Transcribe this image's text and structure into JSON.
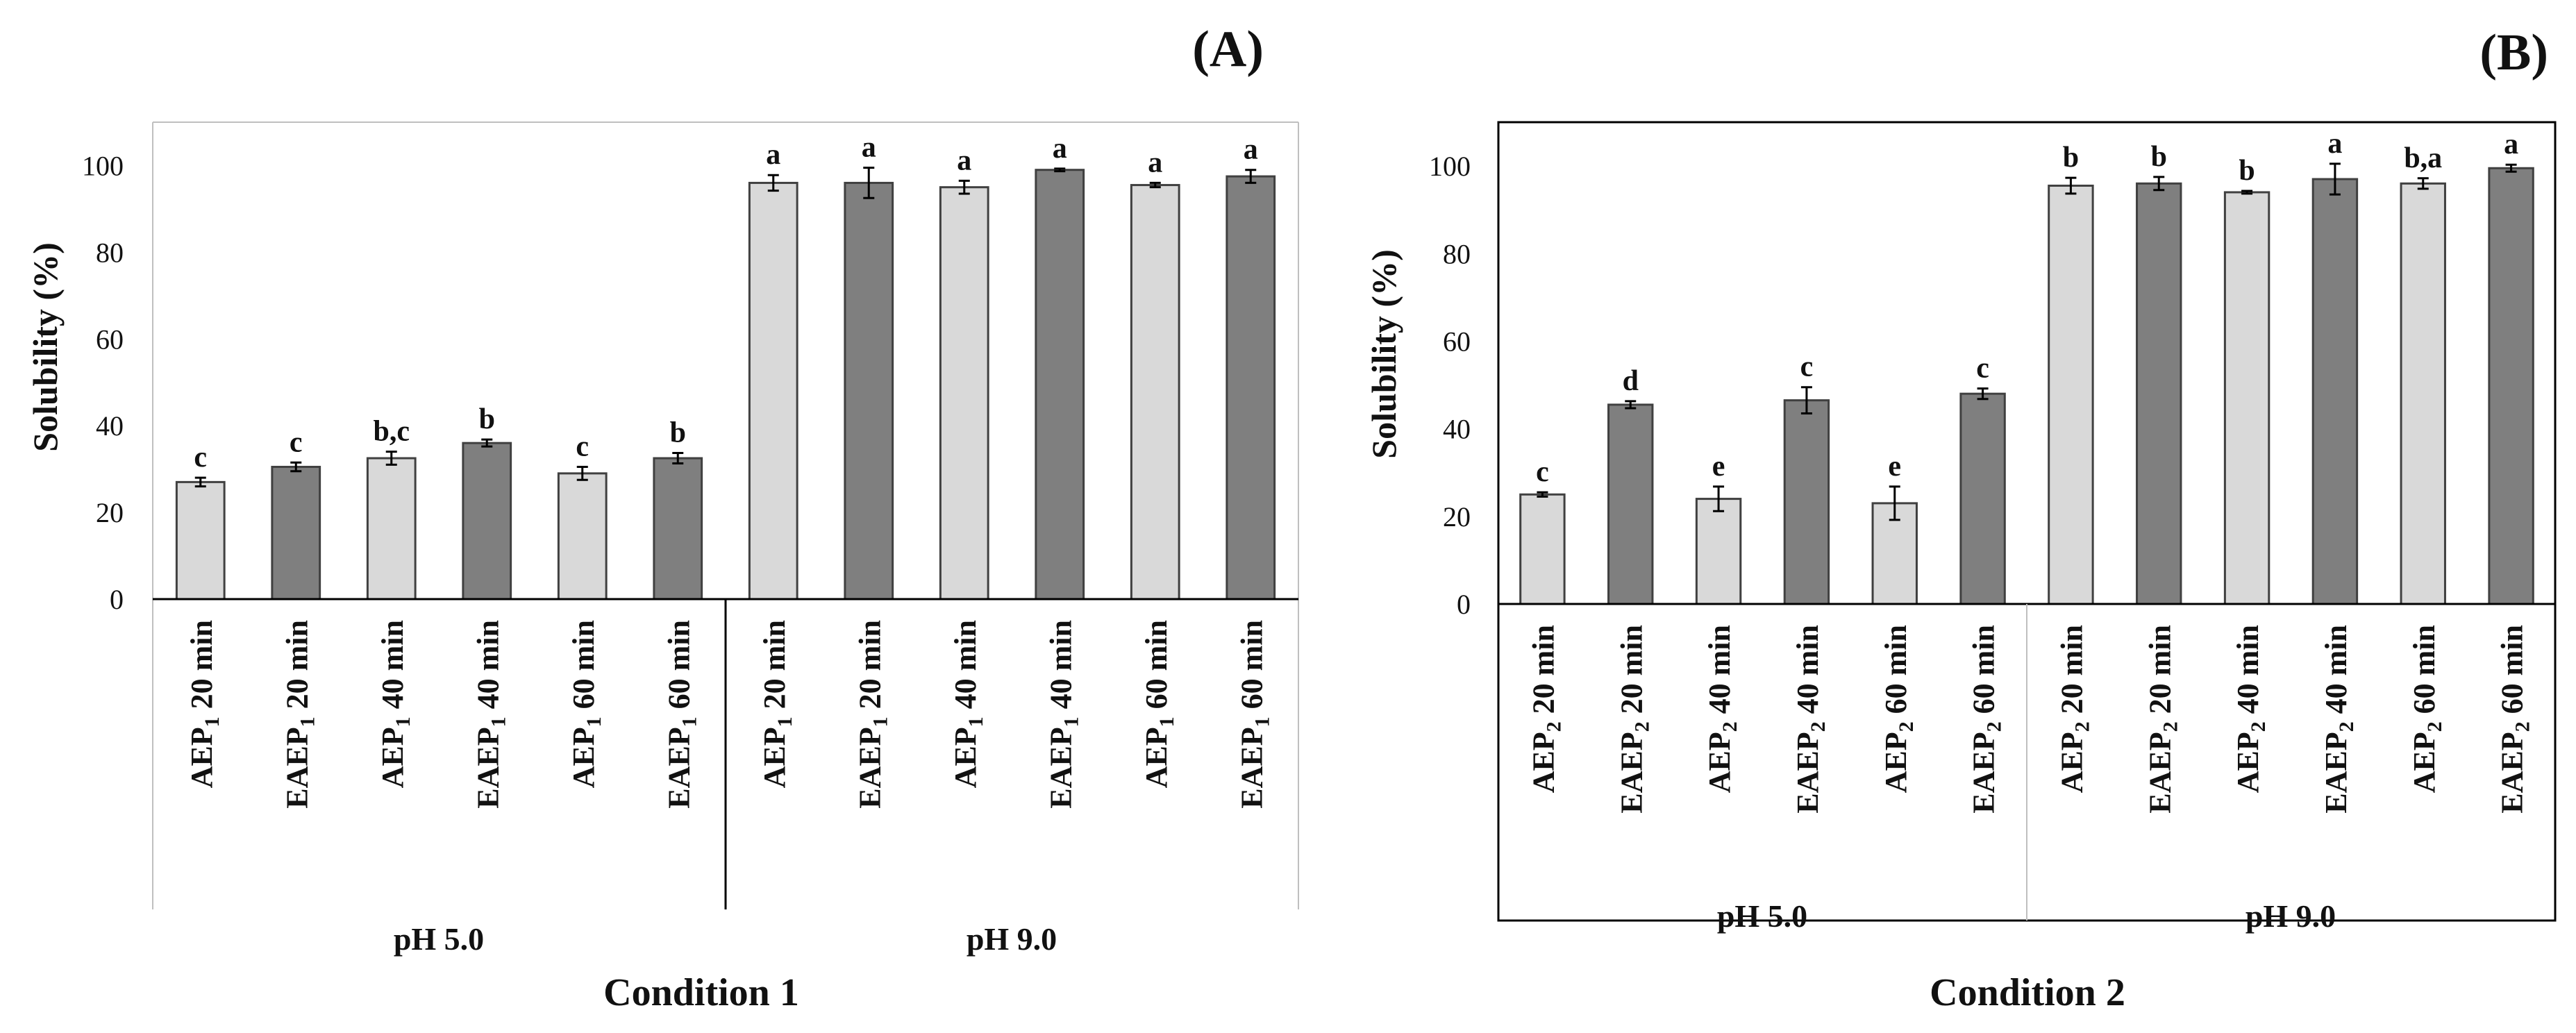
{
  "colors": {
    "light_bar": "#d9d9d9",
    "dark_bar": "#7f7f7f",
    "bar_stroke": "#404040",
    "axis": "#000000"
  },
  "chart_data": [
    {
      "type": "bar",
      "panel_label": "(A)",
      "ylabel": "Solubility (%)",
      "ylim": [
        0,
        110
      ],
      "yticks": [
        "0",
        "20",
        "40",
        "60",
        "80",
        "100"
      ],
      "categories": [
        {
          "prefix": "AEP",
          "sub": "1",
          "suffix": " 20 min"
        },
        {
          "prefix": "EAEP",
          "sub": "1",
          "suffix": " 20 min"
        },
        {
          "prefix": "AEP",
          "sub": "1",
          "suffix": " 40 min"
        },
        {
          "prefix": "EAEP",
          "sub": "1",
          "suffix": " 40 min"
        },
        {
          "prefix": "AEP",
          "sub": "1",
          "suffix": " 60 min"
        },
        {
          "prefix": "EAEP",
          "sub": "1",
          "suffix": " 60 min"
        },
        {
          "prefix": "AEP",
          "sub": "1",
          "suffix": " 20 min"
        },
        {
          "prefix": "EAEP",
          "sub": "1",
          "suffix": " 20 min"
        },
        {
          "prefix": "AEP",
          "sub": "1",
          "suffix": " 40 min"
        },
        {
          "prefix": "EAEP",
          "sub": "1",
          "suffix": " 40 min"
        },
        {
          "prefix": "AEP",
          "sub": "1",
          "suffix": " 60 min"
        },
        {
          "prefix": "EAEP",
          "sub": "1",
          "suffix": " 60 min"
        }
      ],
      "values": [
        27,
        30.5,
        32.5,
        36,
        29,
        32.5,
        96,
        96,
        95,
        99,
        95.5,
        97.5
      ],
      "errors": [
        1,
        1,
        1.5,
        0.8,
        1.5,
        1.2,
        1.8,
        3.5,
        1.5,
        0.3,
        0.5,
        1.5
      ],
      "labels": [
        "c",
        "c",
        "b,c",
        "b",
        "c",
        "b",
        "a",
        "a",
        "a",
        "a",
        "a",
        "a"
      ],
      "shade": [
        "light",
        "dark",
        "light",
        "dark",
        "light",
        "dark",
        "light",
        "dark",
        "light",
        "dark",
        "light",
        "dark"
      ],
      "groups": [
        "pH 5.0",
        "pH 9.0"
      ],
      "xlabel": "Condition 1"
    },
    {
      "type": "bar",
      "panel_label": "(B)",
      "ylabel": "Solubility (%)",
      "ylim": [
        0,
        110
      ],
      "yticks": [
        "0",
        "20",
        "40",
        "60",
        "80",
        "100"
      ],
      "categories": [
        {
          "prefix": "AEP",
          "sub": "2",
          "suffix": " 20 min"
        },
        {
          "prefix": "EAEP",
          "sub": "2",
          "suffix": " 20 min"
        },
        {
          "prefix": "AEP",
          "sub": "2",
          "suffix": " 40 min"
        },
        {
          "prefix": "EAEP",
          "sub": "2",
          "suffix": " 40 min"
        },
        {
          "prefix": "AEP",
          "sub": "2",
          "suffix": " 60 min"
        },
        {
          "prefix": "EAEP",
          "sub": "2",
          "suffix": " 60 min"
        },
        {
          "prefix": "AEP",
          "sub": "2",
          "suffix": " 20 min"
        },
        {
          "prefix": "EAEP",
          "sub": "2",
          "suffix": " 20 min"
        },
        {
          "prefix": "AEP",
          "sub": "2",
          "suffix": " 40 min"
        },
        {
          "prefix": "EAEP",
          "sub": "2",
          "suffix": " 40 min"
        },
        {
          "prefix": "AEP",
          "sub": "2",
          "suffix": " 60 min"
        },
        {
          "prefix": "EAEP",
          "sub": "2",
          "suffix": " 60 min"
        }
      ],
      "values": [
        25,
        45.5,
        24,
        46.5,
        23,
        48,
        95.5,
        96,
        94,
        97,
        96,
        99.5
      ],
      "errors": [
        0.5,
        0.8,
        2.8,
        3,
        3.8,
        1.2,
        1.8,
        1.5,
        0.3,
        3.5,
        1.2,
        0.8
      ],
      "labels": [
        "c",
        "d",
        "e",
        "c",
        "e",
        "c",
        "b",
        "b",
        "b",
        "a",
        "b,a",
        "a"
      ],
      "shade": [
        "light",
        "dark",
        "light",
        "dark",
        "light",
        "dark",
        "light",
        "dark",
        "light",
        "dark",
        "light",
        "dark"
      ],
      "groups": [
        "pH 5.0",
        "pH 9.0"
      ],
      "xlabel": "Condition 2"
    }
  ]
}
